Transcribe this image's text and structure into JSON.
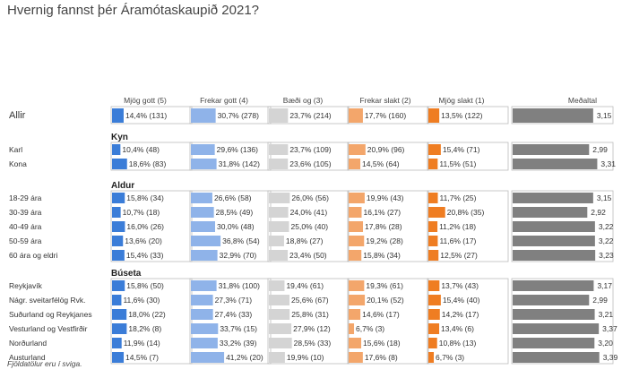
{
  "title": "Hvernig fannst þér Áramótaskaupið 2021?",
  "footnote": "Fjöldatölur eru í sviga.",
  "chart_data": {
    "type": "bar",
    "stacked": false,
    "columns": [
      "Mjög gott (5)",
      "Frekar gott (4)",
      "Bæði og (3)",
      "Frekar slakt (2)",
      "Mjög slakt (1)"
    ],
    "mean_column": "Meðaltal",
    "colors": [
      "#3b7dd8",
      "#8fb3e9",
      "#d4d4d4",
      "#f3a66b",
      "#ef7d22"
    ],
    "mean_color": "#808080",
    "xlim": [
      0,
      100
    ],
    "mean_range": [
      0,
      3.4
    ],
    "groups": [
      {
        "heading": "",
        "rows": [
          {
            "label": "Allir",
            "values": [
              14.4,
              30.7,
              23.7,
              17.7,
              13.5
            ],
            "labels": [
              "14,4% (131)",
              "30,7% (278)",
              "23,7% (214)",
              "17,7% (160)",
              "13,5% (122)"
            ],
            "mean": 3.15,
            "mean_label": "3,15"
          }
        ]
      },
      {
        "heading": "Kyn",
        "rows": [
          {
            "label": "Karl",
            "values": [
              10.4,
              29.6,
              23.7,
              20.9,
              15.4
            ],
            "labels": [
              "10,4% (48)",
              "29,6% (136)",
              "23,7% (109)",
              "20,9% (96)",
              "15,4% (71)"
            ],
            "mean": 2.99,
            "mean_label": "2,99"
          },
          {
            "label": "Kona",
            "values": [
              18.6,
              31.8,
              23.6,
              14.5,
              11.5
            ],
            "labels": [
              "18,6% (83)",
              "31,8% (142)",
              "23,6% (105)",
              "14,5% (64)",
              "11,5% (51)"
            ],
            "mean": 3.31,
            "mean_label": "3,31"
          }
        ]
      },
      {
        "heading": "Aldur",
        "rows": [
          {
            "label": "18-29 ára",
            "values": [
              15.8,
              26.6,
              26.0,
              19.9,
              11.7
            ],
            "labels": [
              "15,8% (34)",
              "26,6% (58)",
              "26,0% (56)",
              "19,9% (43)",
              "11,7% (25)"
            ],
            "mean": 3.15,
            "mean_label": "3,15"
          },
          {
            "label": "30-39 ára",
            "values": [
              10.7,
              28.5,
              24.0,
              16.1,
              20.8
            ],
            "labels": [
              "10,7% (18)",
              "28,5% (49)",
              "24,0% (41)",
              "16,1% (27)",
              "20,8% (35)"
            ],
            "mean": 2.92,
            "mean_label": "2,92"
          },
          {
            "label": "40-49 ára",
            "values": [
              16.0,
              30.0,
              25.0,
              17.8,
              11.2
            ],
            "labels": [
              "16,0% (26)",
              "30,0% (48)",
              "25,0% (40)",
              "17,8% (28)",
              "11,2% (18)"
            ],
            "mean": 3.22,
            "mean_label": "3,22"
          },
          {
            "label": "50-59 ára",
            "values": [
              13.6,
              36.8,
              18.8,
              19.2,
              11.6
            ],
            "labels": [
              "13,6% (20)",
              "36,8% (54)",
              "18,8% (27)",
              "19,2% (28)",
              "11,6% (17)"
            ],
            "mean": 3.22,
            "mean_label": "3,22"
          },
          {
            "label": "60 ára og eldri",
            "values": [
              15.4,
              32.9,
              23.4,
              15.8,
              12.5
            ],
            "labels": [
              "15,4% (33)",
              "32,9% (70)",
              "23,4% (50)",
              "15,8% (34)",
              "12,5% (27)"
            ],
            "mean": 3.23,
            "mean_label": "3,23"
          }
        ]
      },
      {
        "heading": "Búseta",
        "rows": [
          {
            "label": "Reykjavík",
            "values": [
              15.8,
              31.8,
              19.4,
              19.3,
              13.7
            ],
            "labels": [
              "15,8% (50)",
              "31,8% (100)",
              "19,4% (61)",
              "19,3% (61)",
              "13,7% (43)"
            ],
            "mean": 3.17,
            "mean_label": "3,17"
          },
          {
            "label": "Nágr. sveitarfélög Rvk.",
            "values": [
              11.6,
              27.3,
              25.6,
              20.1,
              15.4
            ],
            "labels": [
              "11,6% (30)",
              "27,3% (71)",
              "25,6% (67)",
              "20,1% (52)",
              "15,4% (40)"
            ],
            "mean": 2.99,
            "mean_label": "2,99"
          },
          {
            "label": "Suðurland og Reykjanes",
            "values": [
              18.0,
              27.4,
              25.8,
              14.6,
              14.2
            ],
            "labels": [
              "18,0% (22)",
              "27,4% (33)",
              "25,8% (31)",
              "14,6% (17)",
              "14,2% (17)"
            ],
            "mean": 3.21,
            "mean_label": "3,21"
          },
          {
            "label": "Vesturland og Vestfirðir",
            "values": [
              18.2,
              33.7,
              27.9,
              6.7,
              13.4
            ],
            "labels": [
              "18,2% (8)",
              "33,7% (15)",
              "27,9% (12)",
              "6,7% (3)",
              "13,4% (6)"
            ],
            "mean": 3.37,
            "mean_label": "3,37"
          },
          {
            "label": "Norðurland",
            "values": [
              11.9,
              33.2,
              28.5,
              15.6,
              10.8
            ],
            "labels": [
              "11,9% (14)",
              "33,2% (39)",
              "28,5% (33)",
              "15,6% (18)",
              "10,8% (13)"
            ],
            "mean": 3.2,
            "mean_label": "3,20"
          },
          {
            "label": "Austurland",
            "values": [
              14.5,
              41.2,
              19.9,
              17.6,
              6.7
            ],
            "labels": [
              "14,5% (7)",
              "41,2% (20)",
              "19,9% (10)",
              "17,6% (8)",
              "6,7% (3)"
            ],
            "mean": 3.39,
            "mean_label": "3,39"
          }
        ]
      }
    ]
  }
}
